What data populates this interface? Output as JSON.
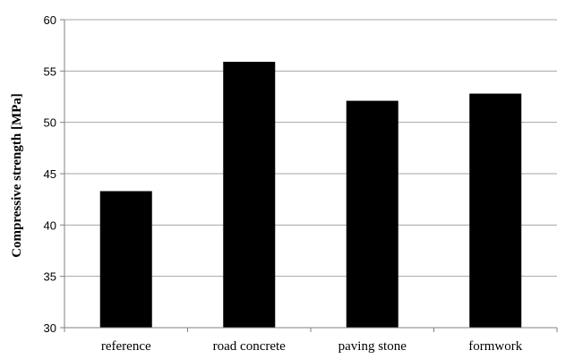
{
  "chart_data": {
    "type": "bar",
    "title": "",
    "xlabel": "",
    "ylabel": "Compressive strength [MPa]",
    "categories": [
      "reference",
      "road concrete",
      "paving stone",
      "formwork"
    ],
    "values": [
      43.3,
      55.9,
      52.1,
      52.8
    ],
    "ylim": [
      30,
      60
    ],
    "yticks": [
      30,
      35,
      40,
      45,
      50,
      55,
      60
    ],
    "grid": true,
    "legend": "none",
    "bar_color": "#000000",
    "grid_color": "#a6a6a6"
  }
}
